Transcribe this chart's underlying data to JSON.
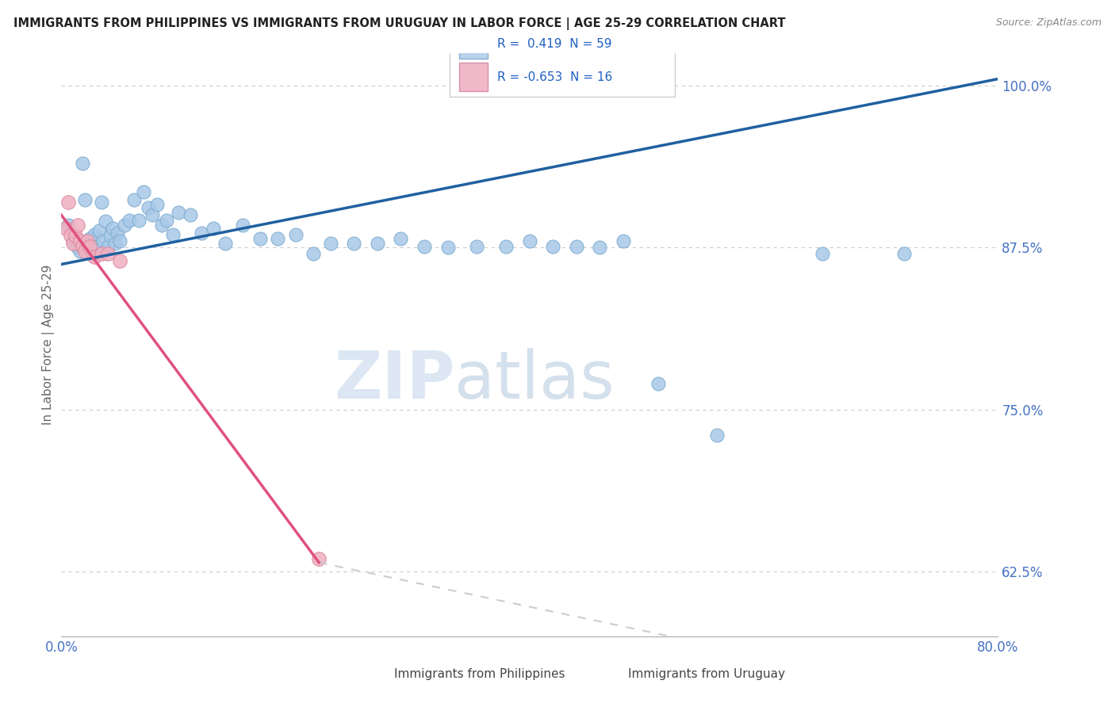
{
  "title": "IMMIGRANTS FROM PHILIPPINES VS IMMIGRANTS FROM URUGUAY IN LABOR FORCE | AGE 25-29 CORRELATION CHART",
  "source": "Source: ZipAtlas.com",
  "ylabel": "In Labor Force | Age 25-29",
  "r_philippines": 0.419,
  "n_philippines": 59,
  "r_uruguay": -0.653,
  "n_uruguay": 16,
  "xlim": [
    0.0,
    0.8
  ],
  "ylim": [
    0.575,
    1.025
  ],
  "yticks": [
    0.625,
    0.75,
    0.875,
    1.0
  ],
  "ytick_labels": [
    "62.5%",
    "75.0%",
    "87.5%",
    "100.0%"
  ],
  "xtick_left_label": "0.0%",
  "xtick_right_label": "80.0%",
  "blue_color": "#a8c8e8",
  "blue_edge_color": "#7aabce",
  "pink_color": "#f0b0c0",
  "pink_edge_color": "#d888a0",
  "blue_line_color": "#2060a0",
  "pink_line_color": "#e05080",
  "dashed_line_color": "#cccccc",
  "background_color": "#ffffff",
  "grid_color": "#cccccc",
  "watermark_zip": "ZIP",
  "watermark_atlas": "atlas",
  "watermark_color_zip": "#c5d8ec",
  "watermark_color_atlas": "#b8cce0",
  "legend_blue_face": "#b8d4ec",
  "legend_blue_edge": "#8ab0d0",
  "legend_pink_face": "#f0b8c8",
  "legend_pink_edge": "#d890a8",
  "text_color_blue": "#2060c0",
  "tick_color": "#4472c4",
  "phil_x": [
    0.006,
    0.01,
    0.014,
    0.016,
    0.018,
    0.02,
    0.022,
    0.024,
    0.026,
    0.028,
    0.03,
    0.032,
    0.034,
    0.036,
    0.038,
    0.04,
    0.042,
    0.044,
    0.046,
    0.048,
    0.05,
    0.054,
    0.058,
    0.062,
    0.066,
    0.07,
    0.074,
    0.078,
    0.082,
    0.086,
    0.09,
    0.095,
    0.1,
    0.11,
    0.12,
    0.13,
    0.14,
    0.155,
    0.17,
    0.185,
    0.2,
    0.215,
    0.23,
    0.25,
    0.27,
    0.29,
    0.31,
    0.33,
    0.355,
    0.38,
    0.4,
    0.42,
    0.44,
    0.46,
    0.48,
    0.51,
    0.56,
    0.65,
    0.72
  ],
  "phil_y": [
    0.892,
    0.88,
    0.875,
    0.872,
    0.94,
    0.912,
    0.878,
    0.882,
    0.87,
    0.885,
    0.876,
    0.888,
    0.91,
    0.88,
    0.895,
    0.876,
    0.884,
    0.89,
    0.878,
    0.886,
    0.88,
    0.892,
    0.896,
    0.912,
    0.896,
    0.918,
    0.906,
    0.9,
    0.908,
    0.892,
    0.896,
    0.885,
    0.902,
    0.9,
    0.886,
    0.89,
    0.878,
    0.892,
    0.882,
    0.882,
    0.885,
    0.87,
    0.878,
    0.878,
    0.878,
    0.882,
    0.876,
    0.875,
    0.876,
    0.876,
    0.88,
    0.876,
    0.876,
    0.875,
    0.88,
    0.77,
    0.73,
    0.87,
    0.87
  ],
  "uru_x": [
    0.004,
    0.006,
    0.008,
    0.01,
    0.012,
    0.014,
    0.016,
    0.018,
    0.02,
    0.022,
    0.024,
    0.028,
    0.034,
    0.04,
    0.05,
    0.22
  ],
  "uru_y": [
    0.89,
    0.91,
    0.884,
    0.878,
    0.884,
    0.892,
    0.88,
    0.876,
    0.872,
    0.88,
    0.876,
    0.868,
    0.87,
    0.87,
    0.865,
    0.635
  ],
  "blue_line_x0": 0.0,
  "blue_line_y0": 0.862,
  "blue_line_x1": 0.8,
  "blue_line_y1": 1.005,
  "pink_line_x0": 0.0,
  "pink_line_y0": 0.9,
  "pink_line_x1_solid": 0.22,
  "pink_line_y1_solid": 0.632,
  "pink_line_x1_dash": 0.52,
  "pink_line_y1_dash": 0.575
}
